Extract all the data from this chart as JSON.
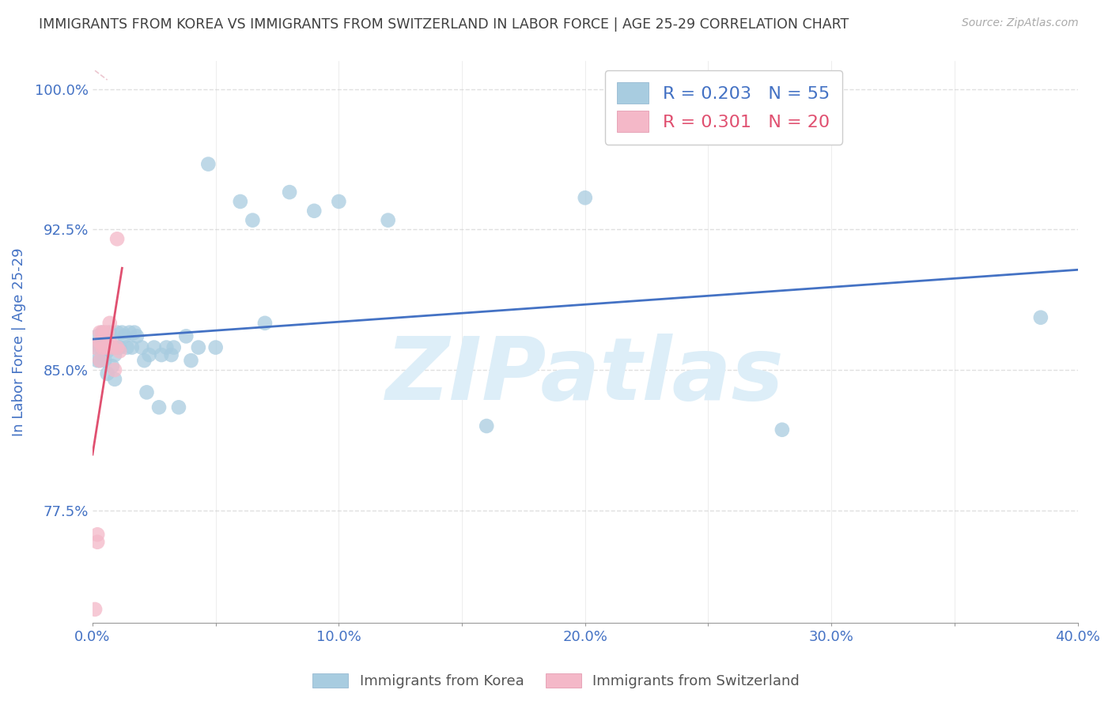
{
  "title": "IMMIGRANTS FROM KOREA VS IMMIGRANTS FROM SWITZERLAND IN LABOR FORCE | AGE 25-29 CORRELATION CHART",
  "source": "Source: ZipAtlas.com",
  "ylabel": "In Labor Force | Age 25-29",
  "xlim": [
    0.0,
    0.4
  ],
  "ylim": [
    0.715,
    1.015
  ],
  "xticks": [
    0.0,
    0.05,
    0.1,
    0.15,
    0.2,
    0.25,
    0.3,
    0.35,
    0.4
  ],
  "xticklabels": [
    "0.0%",
    "",
    "10.0%",
    "",
    "20.0%",
    "",
    "30.0%",
    "",
    "40.0%"
  ],
  "yticks": [
    0.775,
    0.85,
    0.925,
    1.0
  ],
  "yticklabels": [
    "77.5%",
    "85.0%",
    "92.5%",
    "100.0%"
  ],
  "legend_korea_r": "R = 0.203",
  "legend_korea_n": "N = 55",
  "legend_swiss_r": "R = 0.301",
  "legend_swiss_n": "N = 20",
  "korea_color": "#a8cce0",
  "swiss_color": "#f4b8c8",
  "korea_line_color": "#4472c4",
  "swiss_line_color": "#e05070",
  "watermark": "ZIPatlas",
  "watermark_color": "#ddeef8",
  "title_color": "#404040",
  "axis_label_color": "#4472c4",
  "tick_color": "#4472c4",
  "grid_color": "#e0e0e0",
  "korea_x": [
    0.001,
    0.002,
    0.002,
    0.003,
    0.003,
    0.004,
    0.004,
    0.004,
    0.005,
    0.005,
    0.006,
    0.006,
    0.007,
    0.007,
    0.008,
    0.008,
    0.009,
    0.009,
    0.01,
    0.01,
    0.011,
    0.012,
    0.013,
    0.014,
    0.015,
    0.016,
    0.017,
    0.018,
    0.02,
    0.021,
    0.022,
    0.023,
    0.025,
    0.027,
    0.028,
    0.03,
    0.032,
    0.033,
    0.035,
    0.038,
    0.04,
    0.043,
    0.047,
    0.05,
    0.06,
    0.065,
    0.07,
    0.08,
    0.09,
    0.1,
    0.12,
    0.16,
    0.2,
    0.28,
    0.385
  ],
  "korea_y": [
    0.862,
    0.868,
    0.855,
    0.862,
    0.855,
    0.858,
    0.87,
    0.862,
    0.855,
    0.868,
    0.86,
    0.848,
    0.862,
    0.87,
    0.862,
    0.852,
    0.858,
    0.845,
    0.862,
    0.87,
    0.862,
    0.87,
    0.868,
    0.862,
    0.87,
    0.862,
    0.87,
    0.868,
    0.862,
    0.855,
    0.838,
    0.858,
    0.862,
    0.83,
    0.858,
    0.862,
    0.858,
    0.862,
    0.83,
    0.868,
    0.855,
    0.862,
    0.96,
    0.862,
    0.94,
    0.93,
    0.875,
    0.945,
    0.935,
    0.94,
    0.93,
    0.82,
    0.942,
    0.818,
    0.878
  ],
  "swiss_x": [
    0.001,
    0.001,
    0.002,
    0.002,
    0.003,
    0.003,
    0.003,
    0.004,
    0.004,
    0.005,
    0.005,
    0.006,
    0.006,
    0.007,
    0.007,
    0.008,
    0.009,
    0.01,
    0.01,
    0.011
  ],
  "swiss_y": [
    0.722,
    0.862,
    0.758,
    0.762,
    0.855,
    0.865,
    0.87,
    0.87,
    0.862,
    0.862,
    0.87,
    0.87,
    0.862,
    0.875,
    0.865,
    0.862,
    0.85,
    0.862,
    0.92,
    0.86
  ]
}
